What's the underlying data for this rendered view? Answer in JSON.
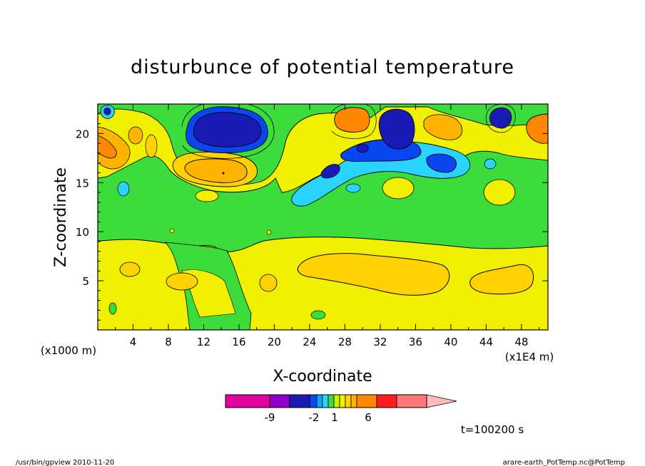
{
  "chart_data": {
    "type": "heatmap",
    "title": "disturbunce of potential temperature",
    "xlabel": "X-coordinate",
    "ylabel": "Z-coordinate",
    "x_unit": "(x1E4 m)",
    "y_unit": "(x1000 m)",
    "x_ticks": [
      "4",
      "8",
      "12",
      "16",
      "20",
      "24",
      "28",
      "32",
      "36",
      "40",
      "44",
      "48"
    ],
    "y_ticks": [
      "5",
      "10",
      "15",
      "20"
    ],
    "xlim": [
      0,
      51
    ],
    "ylim": [
      0,
      23
    ],
    "colorbar": {
      "colors": [
        "#e0009e",
        "#8e00c8",
        "#1a1ab4",
        "#0a46f0",
        "#00aaff",
        "#2ad4ff",
        "#3cdc3c",
        "#c8f000",
        "#f0f000",
        "#ffd200",
        "#ffb400",
        "#ff8800",
        "#ff1e1e",
        "#ff7878",
        "#ffbcbc"
      ],
      "tick_labels": [
        "-9",
        "-2",
        "1",
        "6"
      ]
    },
    "regions": [
      {
        "level": "0 to 1",
        "color": "#f0f000",
        "x": [
          0,
          51
        ],
        "z": [
          0,
          9
        ]
      },
      {
        "level": "-1 to 0",
        "color": "#3cdc3c",
        "x": [
          0,
          51
        ],
        "z": [
          9,
          23
        ]
      },
      {
        "level": "1 to 2",
        "color": "#ffd200",
        "x": [
          24,
          40
        ],
        "z": [
          5,
          8
        ]
      },
      {
        "level": "1 to 2",
        "color": "#ffd200",
        "x": [
          42,
          49
        ],
        "z": [
          4,
          7
        ]
      },
      {
        "level": "below -6",
        "color": "#1a1ab4",
        "x": [
          11,
          19
        ],
        "z": [
          18,
          22
        ]
      },
      {
        "level": "below -4",
        "color": "#1a1ab4",
        "x": [
          31,
          36
        ],
        "z": [
          18,
          22
        ]
      },
      {
        "level": "-2 to -1",
        "color": "#2ad4ff",
        "x": [
          22,
          41
        ],
        "z": [
          13,
          19
        ]
      },
      {
        "level": "2 to 4",
        "color": "#ff8800",
        "x": [
          28,
          31
        ],
        "z": [
          20,
          22
        ]
      },
      {
        "level": "2 to 3",
        "color": "#ffb400",
        "x": [
          10,
          18
        ],
        "z": [
          15,
          18
        ]
      },
      {
        "level": "2 to 4",
        "color": "#ff8800",
        "x": [
          0,
          3
        ],
        "z": [
          17,
          20
        ]
      },
      {
        "level": "2 to 4",
        "color": "#ff8800",
        "x": [
          48,
          51
        ],
        "z": [
          18,
          22
        ]
      }
    ]
  },
  "annotations": {
    "time": "t=100200 s"
  },
  "footer": {
    "left": "/usr/bin/gpview  2010-11-20",
    "right": "arare-earth_PotTemp.nc@PotTemp"
  }
}
